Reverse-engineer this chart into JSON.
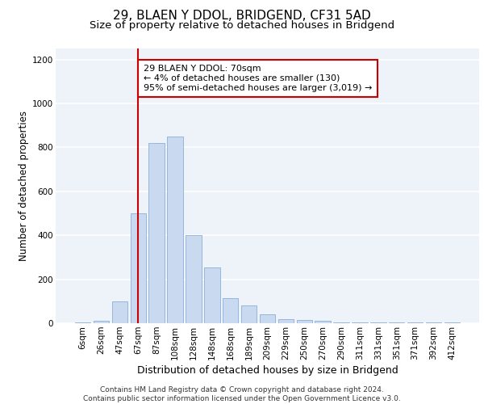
{
  "title1": "29, BLAEN Y DDOL, BRIDGEND, CF31 5AD",
  "title2": "Size of property relative to detached houses in Bridgend",
  "xlabel": "Distribution of detached houses by size in Bridgend",
  "ylabel": "Number of detached properties",
  "categories": [
    "6sqm",
    "26sqm",
    "47sqm",
    "67sqm",
    "87sqm",
    "108sqm",
    "128sqm",
    "148sqm",
    "168sqm",
    "189sqm",
    "209sqm",
    "229sqm",
    "250sqm",
    "270sqm",
    "290sqm",
    "311sqm",
    "331sqm",
    "351sqm",
    "371sqm",
    "392sqm",
    "412sqm"
  ],
  "values": [
    5,
    10,
    100,
    500,
    820,
    850,
    400,
    255,
    115,
    80,
    40,
    20,
    15,
    10,
    5,
    5,
    5,
    5,
    5,
    5,
    5
  ],
  "bar_color": "#c9d9f0",
  "bar_edge_color": "#8ab0d8",
  "highlight_index": 3,
  "highlight_color": "#cc0000",
  "annotation_text": "29 BLAEN Y DDOL: 70sqm\n← 4% of detached houses are smaller (130)\n95% of semi-detached houses are larger (3,019) →",
  "annotation_box_color": "#ffffff",
  "annotation_box_edge": "#cc0000",
  "footer_text": "Contains HM Land Registry data © Crown copyright and database right 2024.\nContains public sector information licensed under the Open Government Licence v3.0.",
  "ylim": [
    0,
    1250
  ],
  "yticks": [
    0,
    200,
    400,
    600,
    800,
    1000,
    1200
  ],
  "background_color": "#eef2f9",
  "grid_color": "#ffffff",
  "title1_fontsize": 11,
  "title2_fontsize": 9.5,
  "xlabel_fontsize": 9,
  "ylabel_fontsize": 8.5,
  "tick_fontsize": 7.5,
  "footer_fontsize": 6.5,
  "annotation_fontsize": 8
}
